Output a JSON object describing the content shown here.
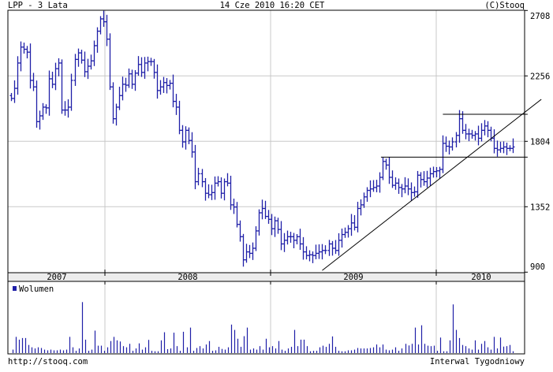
{
  "header": {
    "title": "LPP - 3 Lata",
    "datetime": "14 Cze 2010 16:20 CET",
    "copyright": "(C)Stooq"
  },
  "footer": {
    "url": "http://stooq.com",
    "interval": "Interwal Tygodniowy"
  },
  "colors": {
    "bars": "#1f1fa8",
    "grid": "#c8c8c8",
    "frame": "#000000",
    "year_band": "#ececec"
  },
  "chart_data": [
    {
      "type": "ohlc",
      "title": "LPP - 3 Lata",
      "y_ticks": [
        "2708",
        "2256",
        "1804",
        "1352",
        "900"
      ],
      "ylim": [
        900,
        2708
      ],
      "x_ticks": [
        "2007",
        "2008",
        "2009",
        "2010"
      ],
      "grid": true,
      "close": [
        2100,
        2170,
        2345,
        2455,
        2440,
        2420,
        2225,
        2180,
        1940,
        1980,
        2040,
        2035,
        2236,
        2198,
        2306,
        2345,
        2020,
        2020,
        2040,
        2225,
        2370,
        2415,
        2365,
        2285,
        2323,
        2360,
        2465,
        2565,
        2650,
        2630,
        2510,
        2180,
        1960,
        2040,
        2120,
        2198,
        2192,
        2270,
        2198,
        2275,
        2335,
        2280,
        2345,
        2355,
        2355,
        2280,
        2155,
        2180,
        2210,
        2190,
        2205,
        2080,
        2040,
        1880,
        1800,
        1880,
        1810,
        1730,
        1525,
        1580,
        1525,
        1445,
        1435,
        1450,
        1515,
        1525,
        1445,
        1525,
        1515,
        1365,
        1350,
        1230,
        1145,
        985,
        1040,
        1030,
        1065,
        1185,
        1310,
        1340,
        1285,
        1265,
        1200,
        1255,
        1195,
        1095,
        1120,
        1145,
        1145,
        1120,
        1145,
        1095,
        1040,
        1015,
        1020,
        1015,
        1030,
        1040,
        1050,
        1050,
        1095,
        1065,
        1050,
        1120,
        1160,
        1175,
        1200,
        1240,
        1210,
        1340,
        1365,
        1420,
        1465,
        1475,
        1485,
        1495,
        1555,
        1665,
        1640,
        1555,
        1500,
        1515,
        1485,
        1475,
        1495,
        1475,
        1450,
        1455,
        1570,
        1540,
        1525,
        1550,
        1580,
        1595,
        1600,
        1610,
        1790,
        1770,
        1765,
        1800,
        1845,
        1960,
        1880,
        1855,
        1855,
        1845,
        1855,
        1825,
        1880,
        1910,
        1880,
        1825,
        1755,
        1745,
        1755,
        1765,
        1755,
        1755,
        1765
      ],
      "lines": [
        {
          "from": {
            "week": 98,
            "price": 912
          },
          "to": {
            "week": 167,
            "price": 2094
          }
        },
        {
          "from": {
            "week": 136,
            "price": 1991
          },
          "to": {
            "week": 162.7,
            "price": 1991
          }
        },
        {
          "from": {
            "week": 116.5,
            "price": 1695
          },
          "to": {
            "week": 162.7,
            "price": 1695
          }
        }
      ]
    },
    {
      "type": "bar",
      "legend": "Wolumen",
      "ylim": [
        0,
        272
      ],
      "values": [
        15,
        70,
        58,
        65,
        65,
        35,
        25,
        20,
        25,
        22,
        15,
        12,
        15,
        12,
        12,
        15,
        12,
        15,
        70,
        25,
        10,
        20,
        220,
        58,
        10,
        15,
        97,
        32,
        32,
        10,
        25,
        52,
        70,
        55,
        50,
        30,
        25,
        40,
        10,
        20,
        42,
        15,
        25,
        57,
        10,
        8,
        8,
        55,
        90,
        17,
        20,
        88,
        30,
        10,
        92,
        25,
        110,
        10,
        22,
        30,
        20,
        37,
        52,
        10,
        12,
        27,
        18,
        15,
        25,
        123,
        100,
        62,
        27,
        73,
        110,
        15,
        20,
        15,
        30,
        15,
        62,
        25,
        30,
        20,
        52,
        15,
        10,
        20,
        27,
        100,
        30,
        58,
        58,
        30,
        8,
        10,
        10,
        25,
        32,
        27,
        40,
        72,
        27,
        10,
        8,
        8,
        12,
        12,
        15,
        22,
        20,
        20,
        20,
        22,
        25,
        37,
        25,
        37,
        15,
        12,
        15,
        25,
        10,
        20,
        40,
        33,
        40,
        110,
        37,
        120,
        40,
        32,
        30,
        32,
        10,
        67,
        8,
        8,
        55,
        210,
        100,
        65,
        35,
        30,
        20,
        15,
        55,
        15,
        40,
        52,
        25,
        15,
        70,
        20,
        67,
        28,
        30,
        35,
        8
      ]
    }
  ]
}
